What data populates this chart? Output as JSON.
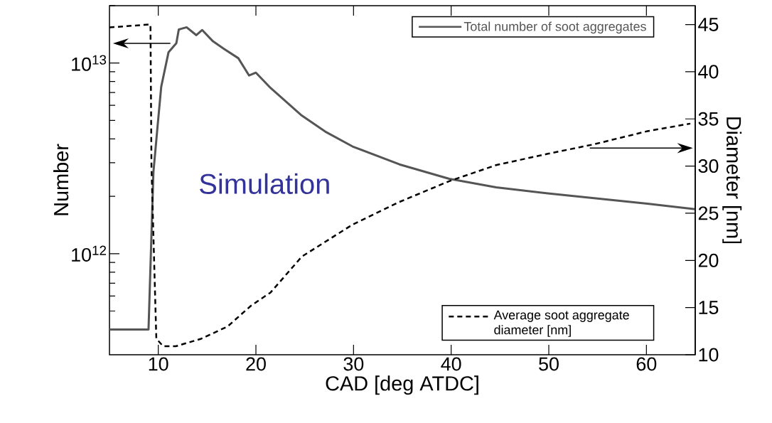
{
  "chart_data": {
    "type": "line",
    "xlabel": "CAD [deg ATDC]",
    "ylabel": "Number",
    "y2label": "Diameter [nm]",
    "xlim": [
      5,
      65
    ],
    "xticks": [
      10,
      20,
      30,
      40,
      50,
      60
    ],
    "ylim": [
      295000000000.0,
      20000000000000.0
    ],
    "log": "y",
    "yticks": [
      {
        "value": 400000000000.0,
        "label": null
      },
      {
        "value": 500000000000.0,
        "label": null
      },
      {
        "value": 600000000000.0,
        "label": null
      },
      {
        "value": 700000000000.0,
        "label": null
      },
      {
        "value": 800000000000.0,
        "label": null
      },
      {
        "value": 900000000000.0,
        "label": null
      },
      {
        "value": 1000000000000.0,
        "label": "10$^{12}$"
      },
      {
        "value": 2000000000000.0,
        "label": null
      },
      {
        "value": 3000000000000.0,
        "label": null
      },
      {
        "value": 4000000000000.0,
        "label": null
      },
      {
        "value": 5000000000000.0,
        "label": null
      },
      {
        "value": 6000000000000.0,
        "label": null
      },
      {
        "value": 7000000000000.0,
        "label": null
      },
      {
        "value": 8000000000000.0,
        "label": null
      },
      {
        "value": 9000000000000.0,
        "label": null
      },
      {
        "value": 10000000000000.0,
        "label": "10$^{13}$"
      },
      {
        "value": 20000000000000.0,
        "label": null
      }
    ],
    "y2lim": [
      10,
      47
    ],
    "y2ticks": [
      10,
      15,
      20,
      25,
      30,
      35,
      40,
      45
    ],
    "legend": "right",
    "grid": false,
    "marker": "none",
    "annotations": [
      "Simulation"
    ],
    "series": [
      {
        "name": "Total number of soot aggregates",
        "color": "#555555",
        "line_style": "solid",
        "x": [
          5,
          9.0,
          9.5,
          9.9,
          10.3,
          11.05,
          11.85,
          12.1,
          12.9,
          13.9,
          14.5,
          15.6,
          16.7,
          18.2,
          19.3,
          20.0,
          21.5,
          24.7,
          27.1,
          29.9,
          34.7,
          39.8,
          44.6,
          49.9,
          60.1,
          65
        ],
        "values": [
          400000000000.0,
          400000000000.0,
          2670000000000.0,
          4500000000000.0,
          7500000000000.0,
          11400000000000.0,
          12700000000000.0,
          15000000000000.0,
          15400000000000.0,
          14000000000000.0,
          14900000000000.0,
          13000000000000.0,
          11900000000000.0,
          10600000000000.0,
          8600000000000.0,
          8900000000000.0,
          7400000000000.0,
          5300000000000.0,
          4370000000000.0,
          3650000000000.0,
          2940000000000.0,
          2470000000000.0,
          2230000000000.0,
          2070000000000.0,
          1830000000000.0,
          1710000000000.0
        ]
      },
      {
        "name": "Average soot aggregate diameter [nm]",
        "color": "#000000",
        "line_style": "dashed",
        "axis": "y2",
        "x": [
          5,
          9.0,
          9.2,
          9.3,
          9.8,
          10.5,
          11.8,
          14.4,
          17.1,
          19.5,
          21.5,
          24.7,
          29.9,
          34.7,
          39.8,
          44.6,
          49.9,
          54.6,
          60.1,
          64.5
        ],
        "values": [
          44.7,
          45.0,
          45.0,
          30.0,
          11.7,
          10.9,
          10.9,
          11.7,
          13.0,
          15.2,
          16.6,
          20.4,
          23.8,
          26.2,
          28.4,
          30.1,
          31.3,
          32.3,
          33.7,
          34.5
        ]
      }
    ]
  }
}
